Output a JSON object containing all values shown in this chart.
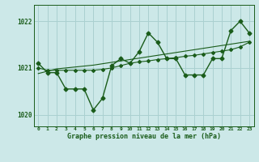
{
  "x": [
    0,
    1,
    2,
    3,
    4,
    5,
    6,
    7,
    8,
    9,
    10,
    11,
    12,
    13,
    14,
    15,
    16,
    17,
    18,
    19,
    20,
    21,
    22,
    23
  ],
  "line_main": [
    1021.1,
    1020.9,
    1020.9,
    1020.55,
    1020.55,
    1020.55,
    1020.1,
    1020.35,
    1021.05,
    1021.2,
    1021.1,
    1021.35,
    1021.75,
    1021.55,
    1021.2,
    1021.2,
    1020.85,
    1020.85,
    1020.85,
    1021.2,
    1021.2,
    1021.8,
    1022.0,
    1021.75
  ],
  "line_smooth": [
    1021.0,
    1020.95,
    1020.95,
    1020.95,
    1020.95,
    1020.95,
    1020.95,
    1020.97,
    1021.0,
    1021.05,
    1021.1,
    1021.13,
    1021.15,
    1021.18,
    1021.2,
    1021.22,
    1021.25,
    1021.27,
    1021.3,
    1021.33,
    1021.36,
    1021.39,
    1021.45,
    1021.55
  ],
  "line_trend": [
    1020.88,
    1020.93,
    1020.98,
    1021.0,
    1021.02,
    1021.04,
    1021.06,
    1021.09,
    1021.12,
    1021.15,
    1021.18,
    1021.21,
    1021.24,
    1021.27,
    1021.3,
    1021.33,
    1021.36,
    1021.39,
    1021.42,
    1021.45,
    1021.48,
    1021.51,
    1021.54,
    1021.57
  ],
  "bg_color": "#cce8e8",
  "grid_color": "#aad0d0",
  "line_color": "#1a5c1a",
  "xlabel": "Graphe pression niveau de la mer (hPa)",
  "yticks": [
    1020,
    1021,
    1022
  ],
  "xtick_labels": [
    "0",
    "1",
    "2",
    "3",
    "4",
    "5",
    "6",
    "7",
    "8",
    "9",
    "10",
    "11",
    "12",
    "13",
    "14",
    "15",
    "16",
    "17",
    "18",
    "19",
    "20",
    "21",
    "22",
    "23"
  ],
  "ylim": [
    1019.75,
    1022.35
  ],
  "xlim": [
    -0.5,
    23.5
  ]
}
